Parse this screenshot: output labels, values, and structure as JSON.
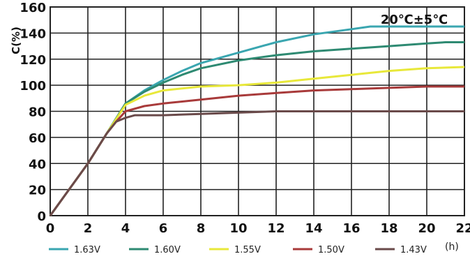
{
  "chart_data": {
    "type": "line",
    "ylabel": "C(%)",
    "x_unit": "(h)",
    "annotation": "20℃±5℃",
    "xlim": [
      0,
      22
    ],
    "ylim": [
      0,
      160
    ],
    "x_ticks": [
      0,
      2,
      4,
      6,
      8,
      10,
      12,
      14,
      16,
      18,
      20,
      22
    ],
    "y_ticks": [
      0,
      20,
      40,
      60,
      80,
      100,
      120,
      140,
      160
    ],
    "grid": true,
    "legend_position": "bottom",
    "series": [
      {
        "name": "1.63V",
        "color": "#3aa6b0",
        "x": [
          0,
          1,
          2,
          3,
          4,
          5,
          6,
          7,
          8,
          10,
          12,
          14,
          16,
          17,
          18,
          20,
          22
        ],
        "y": [
          0,
          20,
          40,
          63,
          86,
          96,
          104,
          111,
          117,
          125,
          133,
          139,
          143,
          145,
          145,
          145,
          145
        ]
      },
      {
        "name": "1.60V",
        "color": "#2e8a72",
        "x": [
          0,
          1,
          2,
          3,
          4,
          5,
          6,
          7,
          8,
          10,
          12,
          14,
          16,
          18,
          20,
          21,
          22
        ],
        "y": [
          0,
          20,
          40,
          63,
          86,
          95,
          102,
          108,
          113,
          119,
          123,
          126,
          128,
          130,
          132,
          133,
          133
        ]
      },
      {
        "name": "1.55V",
        "color": "#e8e83a",
        "x": [
          0,
          1,
          2,
          3,
          4,
          5,
          6,
          8,
          10,
          12,
          14,
          16,
          18,
          20,
          22
        ],
        "y": [
          0,
          20,
          40,
          63,
          85,
          92,
          96,
          99,
          100,
          102,
          105,
          108,
          111,
          113,
          114
        ]
      },
      {
        "name": "1.50V",
        "color": "#a83a3a",
        "x": [
          0,
          1,
          2,
          3,
          3.5,
          4,
          5,
          6,
          8,
          10,
          12,
          14,
          16,
          18,
          20,
          22
        ],
        "y": [
          0,
          20,
          40,
          63,
          72,
          80,
          84,
          86,
          89,
          92,
          94,
          96,
          97,
          98,
          99,
          99
        ]
      },
      {
        "name": "1.43V",
        "color": "#6a4a4a",
        "x": [
          0,
          1,
          2,
          3,
          3.5,
          4,
          4.5,
          5,
          6,
          8,
          10,
          12,
          14,
          16,
          18,
          20,
          22
        ],
        "y": [
          0,
          20,
          40,
          63,
          72,
          75,
          77,
          77,
          77,
          78,
          79,
          80,
          80,
          80,
          80,
          80,
          80
        ]
      }
    ]
  }
}
